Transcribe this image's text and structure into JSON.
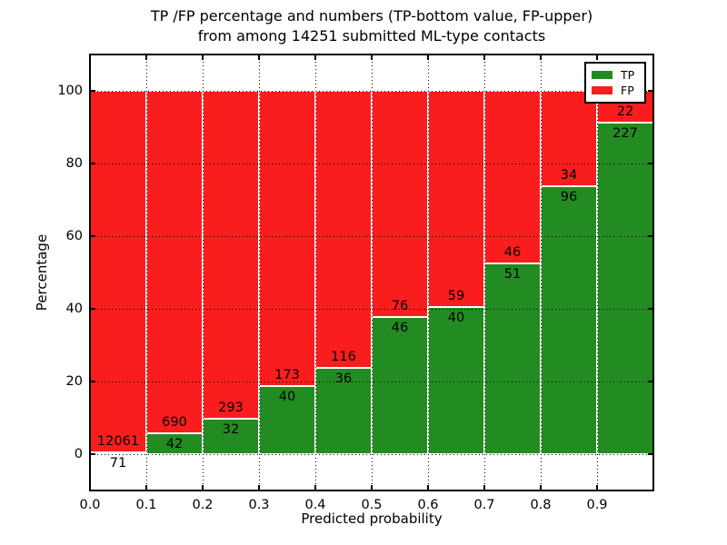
{
  "title_lines": [
    "TP /FP percentage and numbers (TP-bottom value, FP-upper)",
    "from among 14251 submitted ML-type contacts"
  ],
  "chart_data": {
    "type": "bar",
    "stacked": true,
    "orientation": "vertical",
    "title": "TP /FP percentage and numbers (TP-bottom value, FP-upper) from among 14251 submitted ML-type contacts",
    "xlabel": "Predicted probability",
    "ylabel": "Percentage",
    "total_contacts": 14251,
    "bin_starts": [
      0.0,
      0.1,
      0.2,
      0.3,
      0.4,
      0.5,
      0.6,
      0.7,
      0.8,
      0.9
    ],
    "bar_width": 0.1,
    "series": [
      {
        "name": "TP",
        "color": "#228b22",
        "counts": [
          71,
          42,
          32,
          40,
          36,
          46,
          40,
          51,
          96,
          227
        ],
        "percent_of_bin": [
          0.59,
          5.74,
          9.85,
          18.78,
          23.68,
          37.7,
          40.4,
          52.58,
          73.85,
          91.16
        ]
      },
      {
        "name": "FP",
        "color": "#fa1d1d",
        "counts": [
          12061,
          690,
          293,
          173,
          116,
          76,
          59,
          46,
          34,
          22
        ],
        "percent_of_bin": [
          99.41,
          94.26,
          90.15,
          81.22,
          76.32,
          62.3,
          59.6,
          47.42,
          26.15,
          8.84
        ]
      }
    ],
    "xlim": [
      0.0,
      1.0
    ],
    "ylim": [
      -10,
      110
    ],
    "xticks": [
      0.0,
      0.1,
      0.2,
      0.3,
      0.4,
      0.5,
      0.6,
      0.7,
      0.8,
      0.9
    ],
    "yticks": [
      0,
      20,
      40,
      60,
      80,
      100
    ],
    "grid": true,
    "grid_style": "dotted",
    "legend_position": "upper right"
  }
}
